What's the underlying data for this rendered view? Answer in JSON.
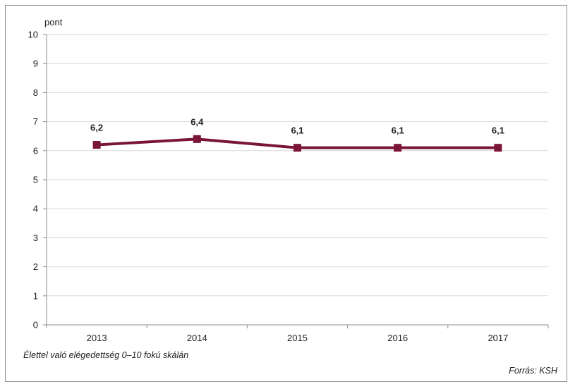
{
  "chart_data": {
    "type": "line",
    "x": [
      "2013",
      "2014",
      "2015",
      "2016",
      "2017"
    ],
    "series": [
      {
        "values": [
          6.2,
          6.4,
          6.1,
          6.1,
          6.1
        ],
        "labels": [
          "6,2",
          "6,4",
          "6,1",
          "6,1",
          "6,1"
        ],
        "color": "#7a1535"
      }
    ],
    "ylabel": "pont",
    "ylim": [
      0,
      10
    ],
    "yticks": [
      "0",
      "1",
      "2",
      "3",
      "4",
      "5",
      "6",
      "7",
      "8",
      "9",
      "10"
    ],
    "grid": true,
    "marker": "square"
  },
  "footnote": "Élettel való elégedettség 0–10 fokú skálán",
  "source": "Forrás: KSH",
  "colors": {
    "line": "#7a1535",
    "grid": "#d9d9d9",
    "frame": "#8c8c8c"
  }
}
